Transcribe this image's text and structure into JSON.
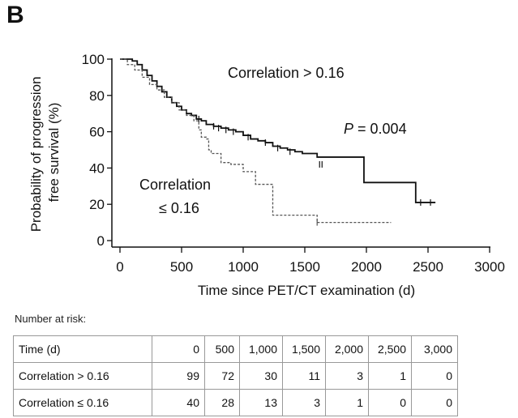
{
  "panel_label": "B",
  "chart_data": {
    "type": "line",
    "chart_subtype": "kaplan-meier",
    "xlabel": "Time since PET/CT examination (d)",
    "ylabel_lines": [
      "Probability of progression",
      "free survival (%)"
    ],
    "xlim": [
      0,
      3000
    ],
    "ylim": [
      0,
      100
    ],
    "xticks": [
      "0",
      "500",
      "1000",
      "1500",
      "2000",
      "2500",
      "3000"
    ],
    "yticks": [
      "0",
      "20",
      "40",
      "60",
      "80",
      "100"
    ],
    "grid": false,
    "annotations": {
      "series_high_label": "Correlation > 0.16",
      "series_low_label_line1": "Correlation",
      "series_low_label_line2": "≤ 0.16",
      "p_symbol": "P",
      "p_value": " = 0.004"
    },
    "series": [
      {
        "style": "solid",
        "color": "#111111",
        "points": [
          [
            0,
            100
          ],
          [
            60,
            100
          ],
          [
            100,
            99
          ],
          [
            140,
            97
          ],
          [
            180,
            94
          ],
          [
            220,
            91
          ],
          [
            260,
            88
          ],
          [
            300,
            85
          ],
          [
            340,
            82
          ],
          [
            380,
            79
          ],
          [
            420,
            76
          ],
          [
            460,
            74
          ],
          [
            500,
            72
          ],
          [
            540,
            70
          ],
          [
            580,
            69
          ],
          [
            620,
            67
          ],
          [
            660,
            66
          ],
          [
            700,
            64
          ],
          [
            760,
            63
          ],
          [
            820,
            62
          ],
          [
            880,
            61
          ],
          [
            940,
            60
          ],
          [
            1000,
            58
          ],
          [
            1060,
            56
          ],
          [
            1120,
            55
          ],
          [
            1180,
            54
          ],
          [
            1240,
            52
          ],
          [
            1300,
            51
          ],
          [
            1360,
            50
          ],
          [
            1420,
            49
          ],
          [
            1480,
            48
          ],
          [
            1600,
            46
          ],
          [
            1700,
            46
          ],
          [
            1960,
            46
          ],
          [
            1980,
            32
          ],
          [
            2400,
            32
          ],
          [
            2400,
            21
          ],
          [
            2560,
            21
          ]
        ],
        "censored": [
          [
            640,
            67
          ],
          [
            760,
            63
          ],
          [
            800,
            62
          ],
          [
            860,
            61
          ],
          [
            920,
            60
          ],
          [
            1040,
            57
          ],
          [
            1180,
            54
          ],
          [
            1280,
            51
          ],
          [
            1380,
            49
          ],
          [
            1620,
            42
          ],
          [
            1640,
            42
          ],
          [
            2440,
            21
          ],
          [
            2520,
            21
          ]
        ]
      },
      {
        "style": "dashed",
        "color": "#555555",
        "points": [
          [
            0,
            100
          ],
          [
            60,
            97
          ],
          [
            120,
            94
          ],
          [
            180,
            90
          ],
          [
            240,
            86
          ],
          [
            300,
            83
          ],
          [
            360,
            79
          ],
          [
            420,
            76
          ],
          [
            480,
            72
          ],
          [
            540,
            69
          ],
          [
            600,
            66
          ],
          [
            640,
            61
          ],
          [
            660,
            57
          ],
          [
            700,
            56
          ],
          [
            720,
            50
          ],
          [
            740,
            48
          ],
          [
            800,
            48
          ],
          [
            820,
            43
          ],
          [
            900,
            42
          ],
          [
            980,
            42
          ],
          [
            1000,
            38
          ],
          [
            1080,
            38
          ],
          [
            1100,
            31
          ],
          [
            1180,
            31
          ],
          [
            1240,
            14
          ],
          [
            1480,
            14
          ],
          [
            1600,
            10
          ],
          [
            2200,
            10
          ]
        ],
        "censored": [
          [
            1600,
            10
          ]
        ]
      }
    ]
  },
  "risk_table": {
    "caption": "Number at risk:",
    "header": [
      "Time (d)",
      "0",
      "500",
      "1,000",
      "1,500",
      "2,000",
      "2,500",
      "3,000"
    ],
    "rows": [
      [
        "Correlation > 0.16",
        "99",
        "72",
        "30",
        "11",
        "3",
        "1",
        "0"
      ],
      [
        "Correlation ≤ 0.16",
        "40",
        "28",
        "13",
        "3",
        "1",
        "0",
        "0"
      ]
    ]
  }
}
